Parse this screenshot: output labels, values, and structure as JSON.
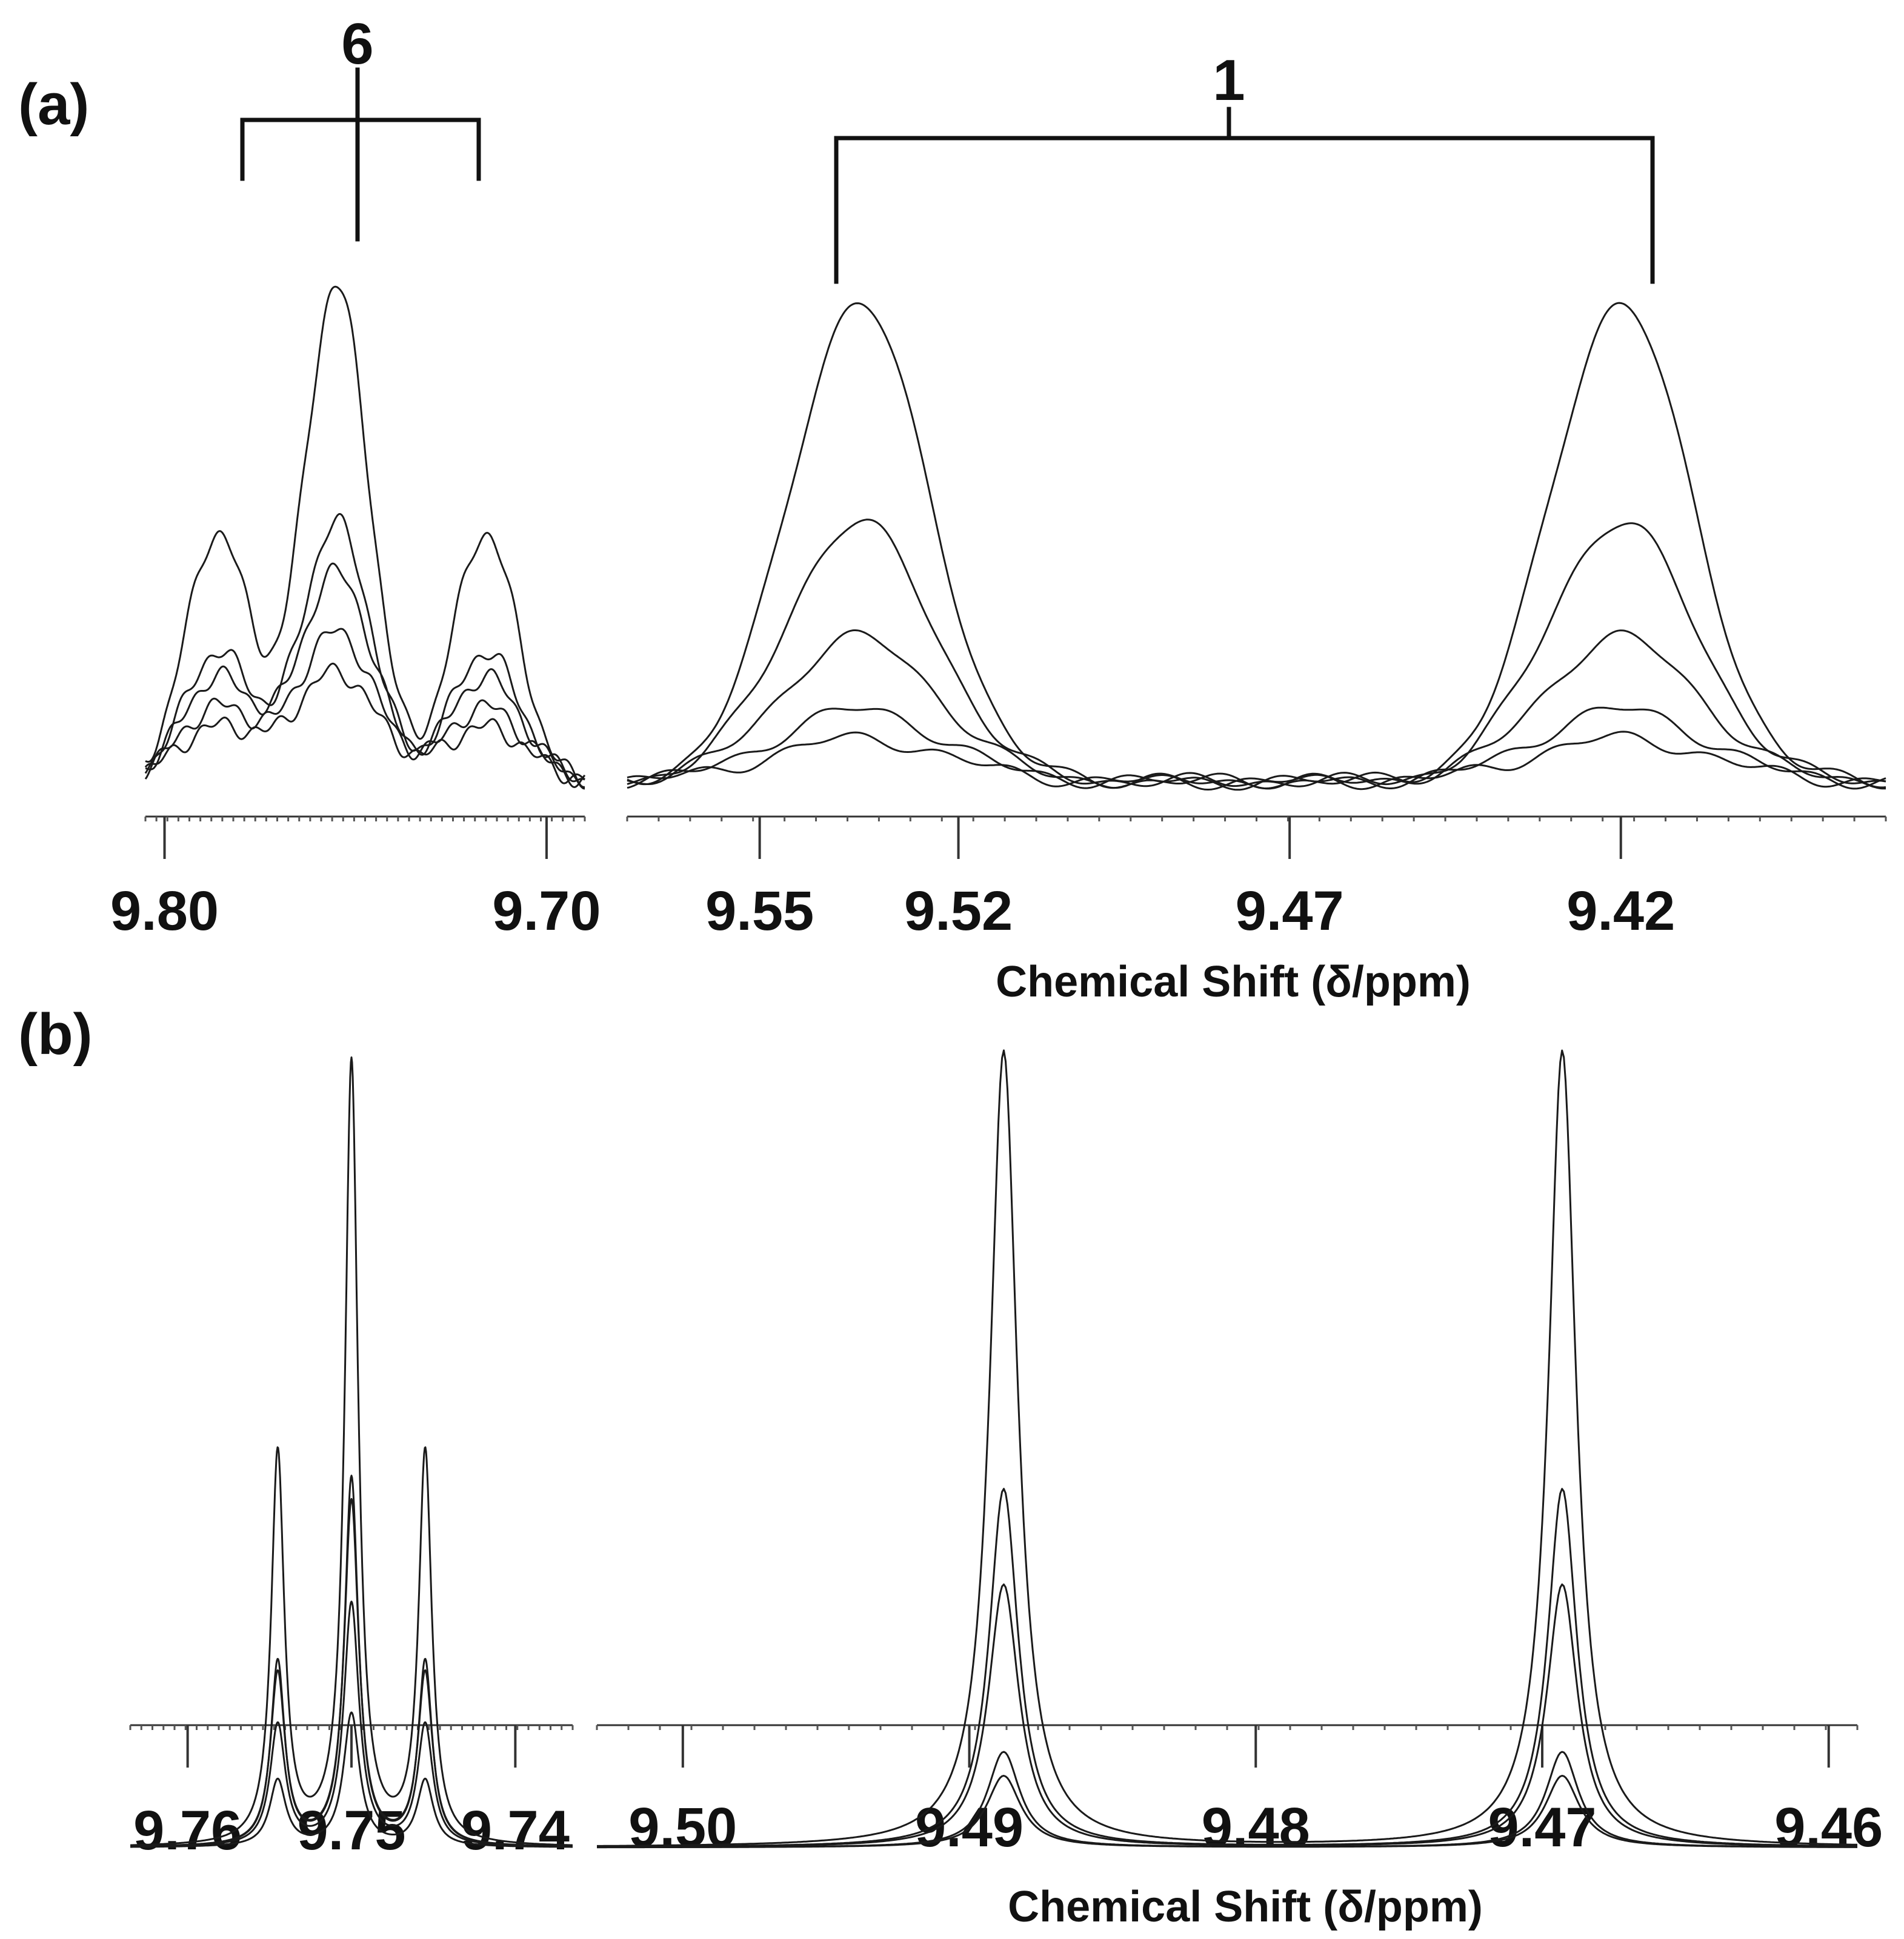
{
  "figure": {
    "panel_labels": {
      "a": "(a)",
      "b": "(b)"
    },
    "bracket_labels": {
      "six": "6",
      "one": "1"
    },
    "axis_titles": {
      "a": "Chemical Shift (δ/ppm)",
      "b": "Chemical Shift (δ/ppm)"
    }
  },
  "chart_data": [
    {
      "id": "a-left",
      "panel": "(a)",
      "type": "line",
      "title": "",
      "xlabel": "",
      "ylabel": "",
      "xlim": [
        9.805,
        9.69
      ],
      "ticks": [
        9.8,
        9.7
      ],
      "tick_labels": [
        "9.80",
        "9.70"
      ],
      "annotation": "6",
      "series_shape": "triplet",
      "peaks": [
        9.786,
        9.755,
        9.716
      ],
      "peak_ratio": [
        0.5,
        1.0,
        0.5
      ],
      "series": [
        {
          "name": "trace-1",
          "scale": 1.0
        },
        {
          "name": "trace-2",
          "scale": 0.52
        },
        {
          "name": "trace-3",
          "scale": 0.42
        },
        {
          "name": "trace-4",
          "scale": 0.3
        },
        {
          "name": "trace-5",
          "scale": 0.22
        }
      ]
    },
    {
      "id": "a-right",
      "panel": "(a)",
      "type": "line",
      "title": "",
      "xlabel": "Chemical Shift (δ/ppm)",
      "ylabel": "",
      "xlim": [
        9.57,
        9.38
      ],
      "ticks": [
        9.55,
        9.52,
        9.47,
        9.42
      ],
      "tick_labels": [
        "9.55",
        "9.52",
        "9.47",
        "9.42"
      ],
      "annotation": "1",
      "series_shape": "doublet",
      "peaks": [
        9.535,
        9.42
      ],
      "series": [
        {
          "name": "trace-1",
          "scale": 1.0
        },
        {
          "name": "trace-2",
          "scale": 0.54
        },
        {
          "name": "trace-3",
          "scale": 0.3
        },
        {
          "name": "trace-4",
          "scale": 0.15
        },
        {
          "name": "trace-5",
          "scale": 0.09
        }
      ]
    },
    {
      "id": "b-left",
      "panel": "(b)",
      "type": "line",
      "title": "",
      "xlabel": "",
      "ylabel": "",
      "xlim": [
        9.7635,
        9.7365
      ],
      "ticks": [
        9.76,
        9.75,
        9.74
      ],
      "tick_labels": [
        "9.76",
        "9.75",
        "9.74"
      ],
      "series_shape": "triplet",
      "peaks": [
        9.7545,
        9.75,
        9.7455
      ],
      "peak_ratio": [
        0.5,
        1.0,
        0.5
      ],
      "series": [
        {
          "name": "trace-1",
          "scale": 1.0
        },
        {
          "name": "trace-2",
          "scale": 0.47
        },
        {
          "name": "trace-3",
          "scale": 0.44
        },
        {
          "name": "trace-4",
          "scale": 0.31
        },
        {
          "name": "trace-5",
          "scale": 0.17
        }
      ]
    },
    {
      "id": "b-right",
      "panel": "(b)",
      "type": "line",
      "title": "",
      "xlabel": "Chemical Shift (δ/ppm)",
      "ylabel": "",
      "xlim": [
        9.503,
        9.459
      ],
      "ticks": [
        9.5,
        9.49,
        9.48,
        9.47,
        9.46
      ],
      "tick_labels": [
        "9.50",
        "9.49",
        "9.48",
        "9.47",
        "9.46"
      ],
      "series_shape": "doublet",
      "peaks": [
        9.4888,
        9.4693
      ],
      "series": [
        {
          "name": "trace-1",
          "scale": 1.0
        },
        {
          "name": "trace-2",
          "scale": 0.45
        },
        {
          "name": "trace-3",
          "scale": 0.33
        },
        {
          "name": "trace-4",
          "scale": 0.12
        },
        {
          "name": "trace-5",
          "scale": 0.09
        }
      ]
    }
  ]
}
